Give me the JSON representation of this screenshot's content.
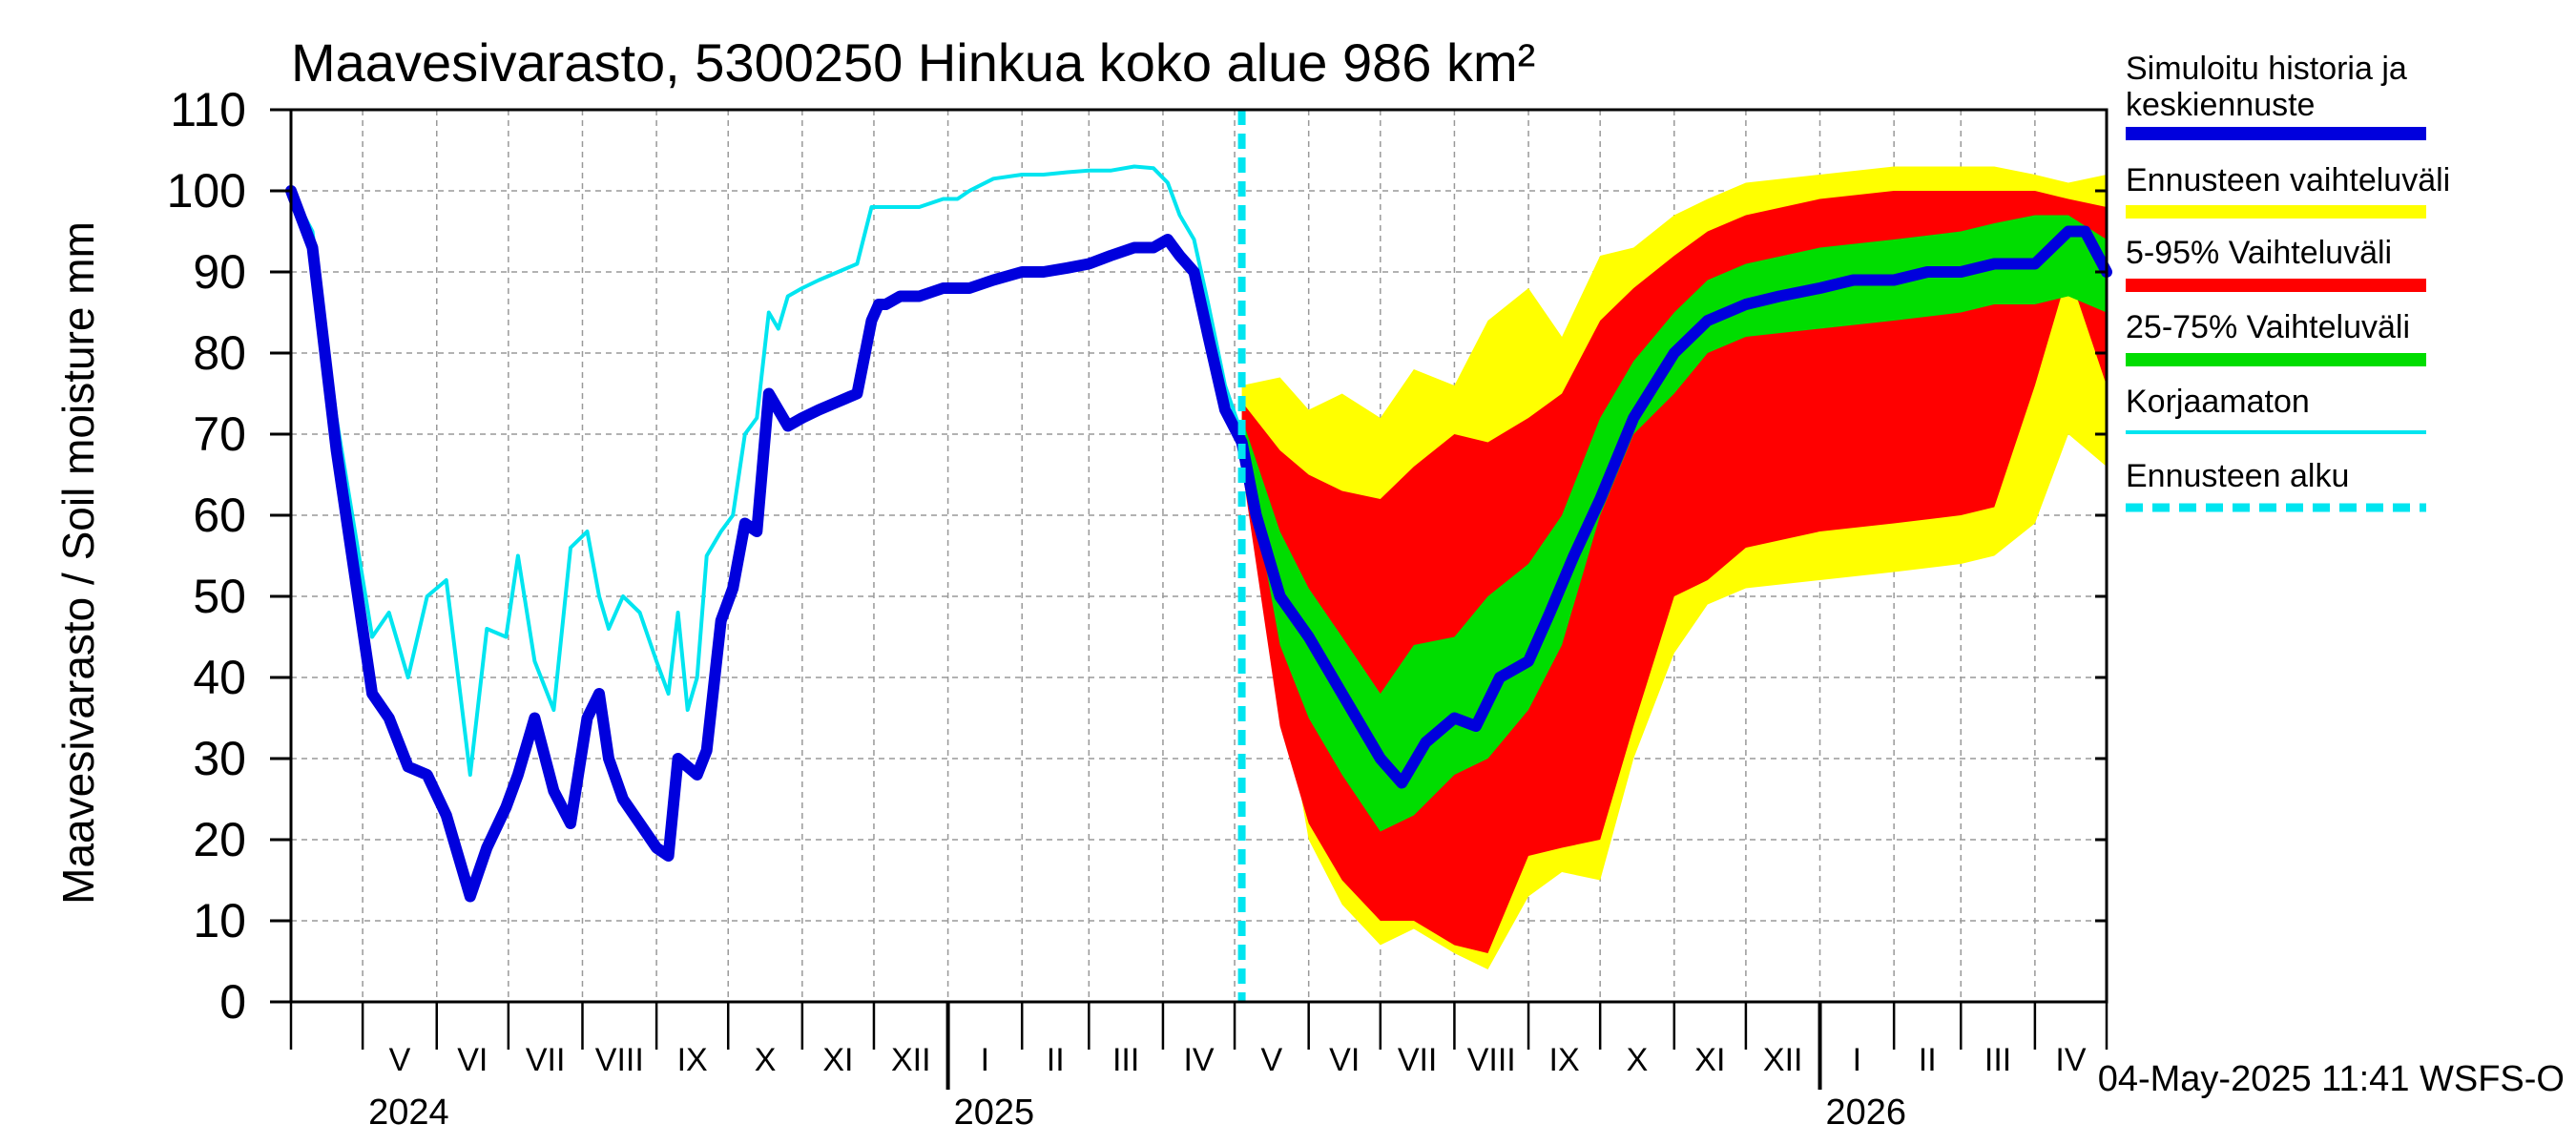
{
  "chart_data": {
    "type": "area",
    "title": "Maavesivarasto, 5300250 Hinkua koko alue 986 km²",
    "ylabel": "Maavesivarasto / Soil moisture   mm",
    "ylim": [
      0,
      110
    ],
    "yticks": [
      0,
      10,
      20,
      30,
      40,
      50,
      60,
      70,
      80,
      90,
      100,
      110
    ],
    "x_range": [
      "2024-04-01",
      "2026-05-01"
    ],
    "grid": true,
    "legend_position": "right",
    "month_labels": [
      "V",
      "VI",
      "VII",
      "VIII",
      "IX",
      "X",
      "XI",
      "XII",
      "I",
      "II",
      "III",
      "IV",
      "V",
      "VI",
      "VII",
      "VIII",
      "IX",
      "X",
      "XI",
      "XII",
      "I",
      "II",
      "III",
      "IV"
    ],
    "year_labels": [
      "2024",
      "2025",
      "2026"
    ],
    "footer": "04-May-2025 11:41 WSFS-O",
    "forecast_start": "2025-05-04",
    "colors": {
      "simulated": "#0000dd",
      "uncorrected": "#00e5f0",
      "range": "#ffff00",
      "p5_95": "#ff0000",
      "p25_75": "#00dd00",
      "forecast_start": "#00e5f0"
    },
    "legend": [
      {
        "key": "simulated",
        "label": "Simuloitu historia ja keskiennuste",
        "style": "thick"
      },
      {
        "key": "range",
        "label": "Ennusteen vaihteluväli",
        "style": "thick"
      },
      {
        "key": "p5_95",
        "label": "5-95% Vaihteluväli",
        "style": "thick"
      },
      {
        "key": "p25_75",
        "label": "25-75% Vaihteluväli",
        "style": "thick"
      },
      {
        "key": "uncorrected",
        "label": "Korjaamaton",
        "style": "thin"
      },
      {
        "key": "forecast_start",
        "label": "Ennusteen alku",
        "style": "dashed"
      }
    ],
    "series": [
      {
        "name": "Simuloitu historia ja keskiennuste",
        "x": [
          "2024-04-01",
          "2024-04-10",
          "2024-04-20",
          "2024-05-05",
          "2024-05-12",
          "2024-05-20",
          "2024-05-28",
          "2024-06-05",
          "2024-06-15",
          "2024-06-22",
          "2024-06-30",
          "2024-07-05",
          "2024-07-12",
          "2024-07-20",
          "2024-07-27",
          "2024-08-03",
          "2024-08-08",
          "2024-08-12",
          "2024-08-18",
          "2024-08-25",
          "2024-09-01",
          "2024-09-06",
          "2024-09-10",
          "2024-09-14",
          "2024-09-18",
          "2024-09-22",
          "2024-09-28",
          "2024-10-03",
          "2024-10-08",
          "2024-10-13",
          "2024-10-18",
          "2024-10-22",
          "2024-10-26",
          "2024-11-01",
          "2024-11-08",
          "2024-11-16",
          "2024-11-24",
          "2024-11-30",
          "2024-12-03",
          "2024-12-06",
          "2024-12-12",
          "2024-12-20",
          "2024-12-30",
          "2025-01-05",
          "2025-01-10",
          "2025-01-20",
          "2025-02-01",
          "2025-02-10",
          "2025-02-20",
          "2025-03-01",
          "2025-03-10",
          "2025-03-20",
          "2025-03-28",
          "2025-04-03",
          "2025-04-08",
          "2025-04-14",
          "2025-04-20",
          "2025-04-27",
          "2025-05-04",
          "2025-05-10",
          "2025-05-20",
          "2025-06-01",
          "2025-06-15",
          "2025-07-01",
          "2025-07-10",
          "2025-07-20",
          "2025-08-01",
          "2025-08-10",
          "2025-08-20",
          "2025-09-01",
          "2025-09-10",
          "2025-09-20",
          "2025-10-01",
          "2025-10-15",
          "2025-11-01",
          "2025-11-15",
          "2025-12-01",
          "2025-12-15",
          "2026-01-01",
          "2026-01-15",
          "2026-02-01",
          "2026-02-15",
          "2026-03-01",
          "2026-03-15",
          "2026-04-01",
          "2026-04-08",
          "2026-04-15",
          "2026-04-22",
          "2026-05-01"
        ],
        "y": [
          100,
          93,
          68,
          38,
          35,
          29,
          28,
          23,
          13,
          19,
          24,
          28,
          35,
          26,
          22,
          35,
          38,
          30,
          25,
          22,
          19,
          18,
          30,
          29,
          28,
          31,
          47,
          51,
          59,
          58,
          75,
          73,
          71,
          72,
          73,
          74,
          75,
          84,
          86,
          86,
          87,
          87,
          88,
          88,
          88,
          89,
          90,
          90,
          90.5,
          91,
          92,
          93,
          93,
          94,
          92,
          90,
          82,
          73,
          69,
          60,
          50,
          45,
          38,
          30,
          27,
          32,
          35,
          34,
          40,
          42,
          48,
          55,
          62,
          72,
          80,
          84,
          86,
          87,
          88,
          89,
          89,
          90,
          90,
          91,
          91,
          93,
          95,
          95,
          90
        ]
      },
      {
        "name": "Korjaamaton",
        "x": [
          "2024-04-01",
          "2024-04-10",
          "2024-04-20",
          "2024-05-05",
          "2024-05-12",
          "2024-05-20",
          "2024-05-28",
          "2024-06-05",
          "2024-06-15",
          "2024-06-22",
          "2024-06-30",
          "2024-07-05",
          "2024-07-12",
          "2024-07-20",
          "2024-07-27",
          "2024-08-03",
          "2024-08-08",
          "2024-08-12",
          "2024-08-18",
          "2024-08-25",
          "2024-09-01",
          "2024-09-06",
          "2024-09-10",
          "2024-09-14",
          "2024-09-18",
          "2024-09-22",
          "2024-09-28",
          "2024-10-03",
          "2024-10-08",
          "2024-10-13",
          "2024-10-18",
          "2024-10-22",
          "2024-10-26",
          "2024-11-01",
          "2024-11-08",
          "2024-11-16",
          "2024-11-24",
          "2024-11-30",
          "2024-12-03",
          "2024-12-06",
          "2024-12-12",
          "2024-12-20",
          "2024-12-30",
          "2025-01-05",
          "2025-01-10",
          "2025-01-20",
          "2025-02-01",
          "2025-02-10",
          "2025-02-20",
          "2025-03-01",
          "2025-03-10",
          "2025-03-20",
          "2025-03-28",
          "2025-04-03",
          "2025-04-08",
          "2025-04-14",
          "2025-04-20",
          "2025-04-27",
          "2025-05-04"
        ],
        "y": [
          100,
          95,
          72,
          45,
          48,
          40,
          50,
          52,
          28,
          46,
          45,
          55,
          42,
          36,
          56,
          58,
          50,
          46,
          50,
          48,
          42,
          38,
          48,
          36,
          40,
          55,
          58,
          60,
          70,
          72,
          85,
          83,
          87,
          88,
          89,
          90,
          91,
          98,
          98,
          98,
          98,
          98,
          99,
          99,
          100,
          101.5,
          102,
          102,
          102.3,
          102.5,
          102.5,
          103,
          102.8,
          101,
          97,
          94,
          86,
          76,
          70
        ]
      },
      {
        "name": "Ennusteen vaihteluväli (yläraja)",
        "x": [
          "2025-05-04",
          "2025-05-20",
          "2025-06-01",
          "2025-06-15",
          "2025-07-01",
          "2025-07-15",
          "2025-08-01",
          "2025-08-15",
          "2025-09-01",
          "2025-09-15",
          "2025-10-01",
          "2025-10-15",
          "2025-11-01",
          "2025-11-15",
          "2025-12-01",
          "2026-01-01",
          "2026-02-01",
          "2026-03-01",
          "2026-03-15",
          "2026-04-01",
          "2026-04-15",
          "2026-05-01"
        ],
        "y": [
          76,
          77,
          73,
          75,
          72,
          78,
          76,
          84,
          88,
          82,
          92,
          93,
          97,
          99,
          101,
          102,
          103,
          103,
          103,
          102,
          101,
          102
        ]
      },
      {
        "name": "Ennusteen vaihteluväli (alaraja)",
        "x": [
          "2025-05-04",
          "2025-05-20",
          "2025-06-01",
          "2025-06-15",
          "2025-07-01",
          "2025-07-15",
          "2025-08-01",
          "2025-08-15",
          "2025-09-01",
          "2025-09-15",
          "2025-10-01",
          "2025-10-15",
          "2025-11-01",
          "2025-11-15",
          "2025-12-01",
          "2026-01-01",
          "2026-02-01",
          "2026-03-01",
          "2026-03-15",
          "2026-04-01",
          "2026-04-15",
          "2026-05-01"
        ],
        "y": [
          66,
          40,
          20,
          12,
          7,
          9,
          6,
          4,
          13,
          16,
          15,
          30,
          43,
          49,
          51,
          52,
          53,
          54,
          55,
          59,
          70,
          66
        ]
      },
      {
        "name": "5-95% Vaihteluväli (yläraja)",
        "x": [
          "2025-05-04",
          "2025-05-20",
          "2025-06-01",
          "2025-06-15",
          "2025-07-01",
          "2025-07-15",
          "2025-08-01",
          "2025-08-15",
          "2025-09-01",
          "2025-09-15",
          "2025-10-01",
          "2025-10-15",
          "2025-11-01",
          "2025-11-15",
          "2025-12-01",
          "2026-01-01",
          "2026-02-01",
          "2026-03-01",
          "2026-03-15",
          "2026-04-01",
          "2026-04-15",
          "2026-05-01"
        ],
        "y": [
          74,
          68,
          65,
          63,
          62,
          66,
          70,
          69,
          72,
          75,
          84,
          88,
          92,
          95,
          97,
          99,
          100,
          100,
          100,
          100,
          99,
          98
        ]
      },
      {
        "name": "5-95% Vaihteluväli (alaraja)",
        "x": [
          "2025-05-04",
          "2025-05-20",
          "2025-06-01",
          "2025-06-15",
          "2025-07-01",
          "2025-07-15",
          "2025-08-01",
          "2025-08-15",
          "2025-09-01",
          "2025-09-15",
          "2025-10-01",
          "2025-10-15",
          "2025-11-01",
          "2025-11-15",
          "2025-12-01",
          "2026-01-01",
          "2026-02-01",
          "2026-03-01",
          "2026-03-15",
          "2026-04-01",
          "2026-04-15",
          "2026-05-01"
        ],
        "y": [
          66,
          34,
          22,
          15,
          10,
          10,
          7,
          6,
          18,
          19,
          20,
          34,
          50,
          52,
          56,
          58,
          59,
          60,
          61,
          76,
          90,
          76
        ]
      },
      {
        "name": "25-75% Vaihteluväli (yläraja)",
        "x": [
          "2025-05-04",
          "2025-05-20",
          "2025-06-01",
          "2025-06-15",
          "2025-07-01",
          "2025-07-15",
          "2025-08-01",
          "2025-08-15",
          "2025-09-01",
          "2025-09-15",
          "2025-10-01",
          "2025-10-15",
          "2025-11-01",
          "2025-11-15",
          "2025-12-01",
          "2026-01-01",
          "2026-02-01",
          "2026-03-01",
          "2026-03-15",
          "2026-04-01",
          "2026-04-15",
          "2026-05-01"
        ],
        "y": [
          72,
          58,
          51,
          45,
          38,
          44,
          45,
          50,
          54,
          60,
          72,
          79,
          85,
          89,
          91,
          93,
          94,
          95,
          96,
          97,
          97,
          94
        ]
      },
      {
        "name": "25-75% Vaihteluväli (alaraja)",
        "x": [
          "2025-05-04",
          "2025-05-20",
          "2025-06-01",
          "2025-06-15",
          "2025-07-01",
          "2025-07-15",
          "2025-08-01",
          "2025-08-15",
          "2025-09-01",
          "2025-09-15",
          "2025-10-01",
          "2025-10-15",
          "2025-11-01",
          "2025-11-15",
          "2025-12-01",
          "2026-01-01",
          "2026-02-01",
          "2026-03-01",
          "2026-03-15",
          "2026-04-01",
          "2026-04-15",
          "2026-05-01"
        ],
        "y": [
          70,
          44,
          35,
          28,
          21,
          23,
          28,
          30,
          36,
          44,
          60,
          70,
          75,
          80,
          82,
          83,
          84,
          85,
          86,
          86,
          87,
          85
        ]
      }
    ]
  }
}
